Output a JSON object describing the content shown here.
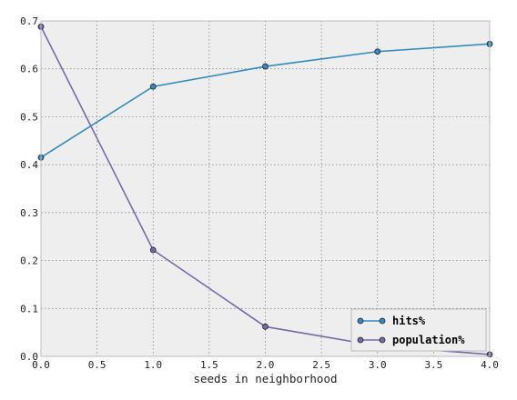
{
  "chart_data": {
    "type": "line",
    "xlabel": "seeds in neighborhood",
    "ylabel": "",
    "title": "",
    "xlim": [
      0.0,
      4.0
    ],
    "ylim": [
      0.0,
      0.7
    ],
    "xticks": [
      "0.0",
      "0.5",
      "1.0",
      "1.5",
      "2.0",
      "2.5",
      "3.0",
      "3.5",
      "4.0"
    ],
    "yticks": [
      "0.0",
      "0.1",
      "0.2",
      "0.3",
      "0.4",
      "0.5",
      "0.6",
      "0.7"
    ],
    "grid": true,
    "legend_position": "bottom-right",
    "series": [
      {
        "name": "hits%",
        "color": "#348abd",
        "x": [
          0,
          1,
          2,
          3,
          4
        ],
        "y": [
          0.415,
          0.563,
          0.605,
          0.636,
          0.652
        ]
      },
      {
        "name": "population%",
        "color": "#7a68a6",
        "x": [
          0,
          1,
          2,
          3,
          4
        ],
        "y": [
          0.688,
          0.222,
          0.062,
          0.022,
          0.004
        ]
      }
    ]
  }
}
